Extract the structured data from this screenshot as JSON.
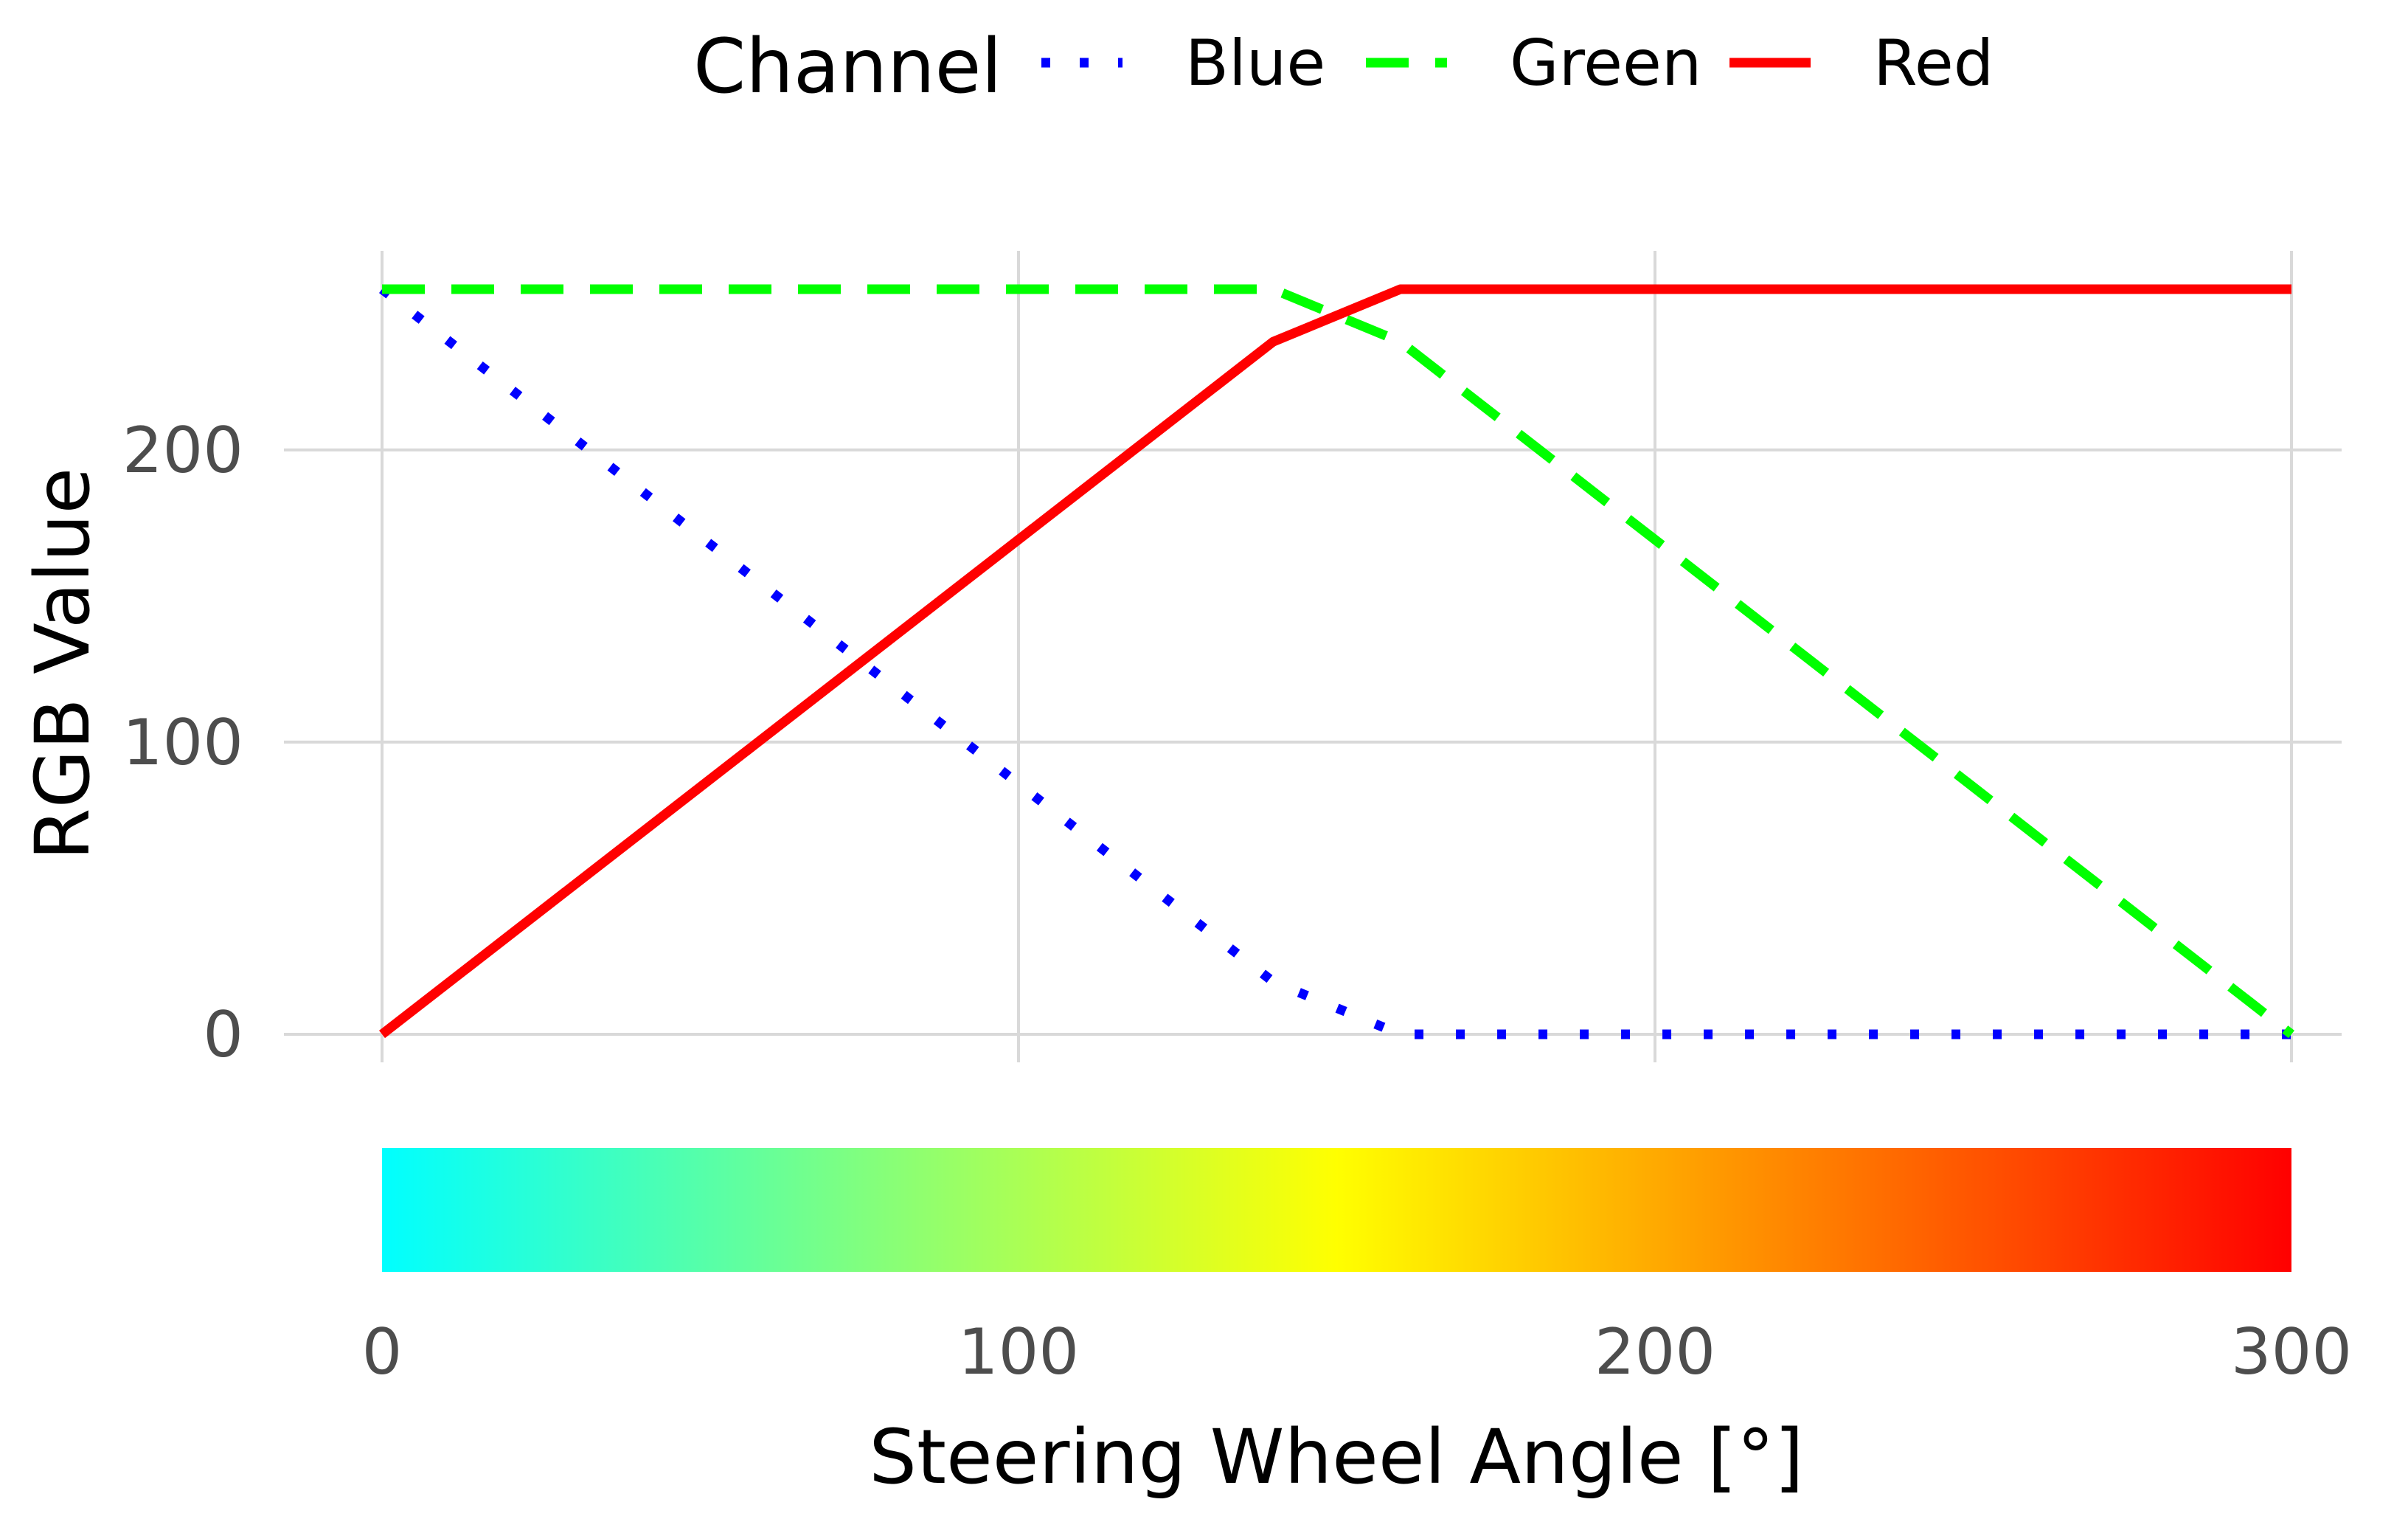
{
  "chart_data": {
    "type": "line",
    "title": "",
    "xlabel": "Steering Wheel Angle [°]",
    "ylabel": "RGB Value",
    "xlim": [
      0,
      300
    ],
    "ylim": [
      0,
      255
    ],
    "x_ticks": [
      0,
      100,
      200,
      300
    ],
    "x_tick_labels": [
      "0",
      "100",
      "200",
      "300"
    ],
    "y_ticks": [
      0,
      100,
      200
    ],
    "y_tick_labels": [
      "0",
      "100",
      "200"
    ],
    "grid": true,
    "legend": {
      "title": "Channel",
      "position": "top",
      "entries": [
        "Blue",
        "Green",
        "Red"
      ]
    },
    "series": [
      {
        "name": "Blue",
        "color": "#0000ff",
        "line_style": "dotted",
        "x": [
          0,
          140,
          160,
          300
        ],
        "values": [
          255,
          18,
          0,
          0
        ]
      },
      {
        "name": "Green",
        "color": "#00ff00",
        "line_style": "dashed",
        "x": [
          0,
          140,
          160,
          300
        ],
        "values": [
          255,
          255,
          237,
          0
        ]
      },
      {
        "name": "Red",
        "color": "#ff0000",
        "line_style": "solid",
        "x": [
          0,
          140,
          160,
          300
        ],
        "values": [
          0,
          237,
          255,
          255
        ]
      }
    ],
    "colorbar": {
      "orientation": "horizontal",
      "range": [
        0,
        300
      ],
      "stops": [
        {
          "value": 0,
          "color": "#00ffff"
        },
        {
          "value": 150,
          "color": "#ffff00"
        },
        {
          "value": 300,
          "color": "#ff0000"
        }
      ]
    }
  }
}
